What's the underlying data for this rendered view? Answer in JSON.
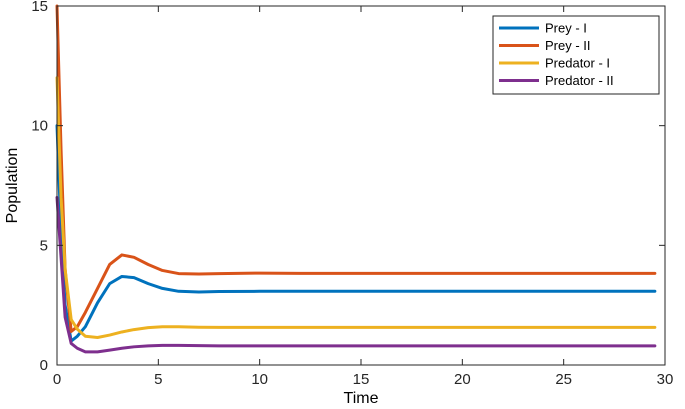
{
  "chart_data": {
    "type": "line",
    "title": "",
    "xlabel": "Time",
    "ylabel": "Population",
    "xlim": [
      0,
      30
    ],
    "ylim": [
      0,
      15
    ],
    "x_ticks": [
      0,
      5,
      10,
      15,
      20,
      25,
      30
    ],
    "y_ticks": [
      0,
      5,
      10,
      15
    ],
    "grid": false,
    "legend_position": "top-right",
    "series": [
      {
        "name": "Prey - I",
        "color": "#0072BD",
        "x": [
          0,
          0.2,
          0.4,
          0.7,
          1.0,
          1.4,
          2.0,
          2.6,
          3.2,
          3.8,
          4.5,
          5.2,
          6.0,
          7.0,
          8.0,
          10.0,
          12.0,
          15.0,
          20.0,
          25.0,
          29.5
        ],
        "y": [
          10.0,
          5.5,
          2.5,
          1.0,
          1.2,
          1.6,
          2.6,
          3.4,
          3.7,
          3.65,
          3.4,
          3.2,
          3.08,
          3.05,
          3.07,
          3.08,
          3.08,
          3.08,
          3.08,
          3.08,
          3.08
        ]
      },
      {
        "name": "Prey - II",
        "color": "#D95319",
        "x": [
          0,
          0.2,
          0.4,
          0.7,
          1.0,
          1.4,
          2.0,
          2.6,
          3.2,
          3.8,
          4.5,
          5.2,
          6.0,
          7.0,
          8.0,
          10.0,
          12.0,
          15.0,
          20.0,
          25.0,
          29.5
        ],
        "y": [
          15.0,
          9.0,
          4.0,
          1.4,
          1.6,
          2.2,
          3.2,
          4.2,
          4.6,
          4.5,
          4.2,
          3.95,
          3.82,
          3.8,
          3.82,
          3.84,
          3.83,
          3.83,
          3.83,
          3.83,
          3.83
        ]
      },
      {
        "name": "Predator - I",
        "color": "#EDB120",
        "x": [
          0,
          0.2,
          0.4,
          0.7,
          1.0,
          1.4,
          2.0,
          2.6,
          3.2,
          3.8,
          4.5,
          5.2,
          6.0,
          7.0,
          8.0,
          10.0,
          12.0,
          15.0,
          20.0,
          25.0,
          29.5
        ],
        "y": [
          12.0,
          7.0,
          4.0,
          1.9,
          1.5,
          1.2,
          1.15,
          1.25,
          1.38,
          1.48,
          1.56,
          1.6,
          1.6,
          1.58,
          1.57,
          1.57,
          1.57,
          1.57,
          1.57,
          1.57,
          1.57
        ]
      },
      {
        "name": "Predator - II",
        "color": "#7E2F8E",
        "x": [
          0,
          0.2,
          0.4,
          0.7,
          1.0,
          1.4,
          2.0,
          2.6,
          3.2,
          3.8,
          4.5,
          5.2,
          6.0,
          7.0,
          8.0,
          10.0,
          12.0,
          15.0,
          20.0,
          25.0,
          29.5
        ],
        "y": [
          7.0,
          4.5,
          2.0,
          0.9,
          0.7,
          0.55,
          0.55,
          0.62,
          0.7,
          0.76,
          0.8,
          0.82,
          0.82,
          0.81,
          0.8,
          0.8,
          0.8,
          0.8,
          0.8,
          0.8,
          0.8
        ]
      }
    ]
  }
}
